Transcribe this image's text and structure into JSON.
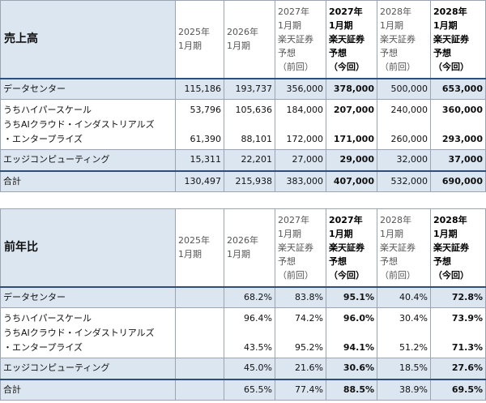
{
  "headers": {
    "c2025": [
      "2025年",
      "1月期"
    ],
    "c2026": [
      "2026年",
      "1月期"
    ],
    "c2027prev": [
      "2027年",
      "1月期",
      "楽天証券",
      "予想",
      "（前回）"
    ],
    "c2027now": [
      "2027年",
      "1月期",
      "楽天証券",
      "予想",
      "（今回）"
    ],
    "c2028prev": [
      "2028年",
      "1月期",
      "楽天証券",
      "予想",
      "（前回）"
    ],
    "c2028now": [
      "2028年",
      "1月期",
      "楽天証券",
      "予想",
      "（今回）"
    ]
  },
  "sales": {
    "title": "売上高",
    "rows": [
      {
        "label": [
          "データセンター"
        ],
        "values": [
          "115,186",
          "193,737",
          "356,000",
          "378,000",
          "500,000",
          "653,000"
        ]
      },
      {
        "label": [
          "うちハイパースケール",
          "うちAIクラウド・インダストリアルズ",
          "・エンタープライズ"
        ],
        "values": [
          "53,796",
          "105,636",
          "184,000",
          "207,000",
          "240,000",
          "360,000"
        ],
        "values2": [
          "61,390",
          "88,101",
          "172,000",
          "171,000",
          "260,000",
          "293,000"
        ]
      },
      {
        "label": [
          "エッジコンピューティング"
        ],
        "values": [
          "15,311",
          "22,201",
          "27,000",
          "29,000",
          "32,000",
          "37,000"
        ]
      },
      {
        "label": [
          "合計"
        ],
        "values": [
          "130,497",
          "215,938",
          "383,000",
          "407,000",
          "532,000",
          "690,000"
        ]
      }
    ]
  },
  "yoy": {
    "title": "前年比",
    "rows": [
      {
        "label": [
          "データセンター"
        ],
        "values": [
          "",
          "68.2%",
          "83.8%",
          "95.1%",
          "40.4%",
          "72.8%"
        ]
      },
      {
        "label": [
          "うちハイパースケール",
          "うちAIクラウド・インダストリアルズ",
          "・エンタープライズ"
        ],
        "values": [
          "",
          "96.4%",
          "74.2%",
          "96.0%",
          "30.4%",
          "73.9%"
        ],
        "values2": [
          "",
          "43.5%",
          "95.2%",
          "94.1%",
          "51.2%",
          "71.3%"
        ]
      },
      {
        "label": [
          "エッジコンピューティング"
        ],
        "values": [
          "",
          "45.0%",
          "21.6%",
          "30.6%",
          "18.5%",
          "27.6%"
        ]
      },
      {
        "label": [
          "合計"
        ],
        "values": [
          "",
          "65.5%",
          "77.4%",
          "88.5%",
          "38.9%",
          "69.5%"
        ]
      }
    ]
  }
}
